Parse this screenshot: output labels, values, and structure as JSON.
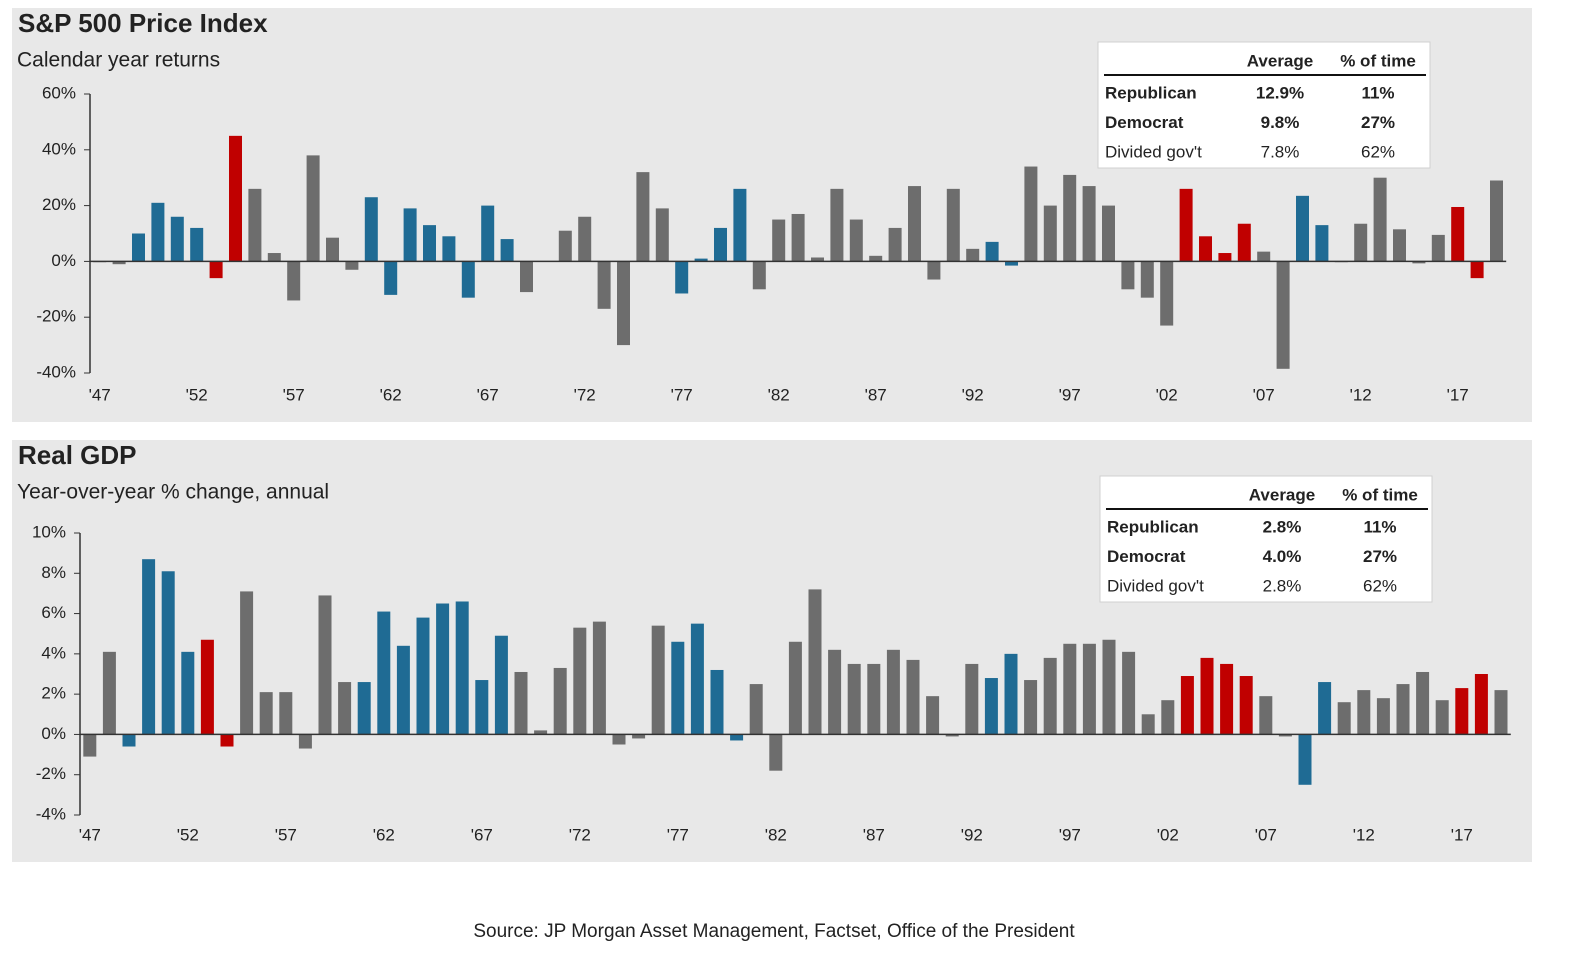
{
  "chart_data": [
    {
      "type": "bar",
      "title": "S&P 500 Price Index",
      "subtitle": "Calendar year returns",
      "categories": [
        "'47",
        null,
        null,
        null,
        null,
        "'52",
        null,
        null,
        null,
        null,
        "'57",
        null,
        null,
        null,
        null,
        "'62",
        null,
        null,
        null,
        null,
        "'67",
        null,
        null,
        null,
        null,
        "'72",
        null,
        null,
        null,
        null,
        "'77",
        null,
        null,
        null,
        null,
        "'82",
        null,
        null,
        null,
        null,
        "'87",
        null,
        null,
        null,
        null,
        "'92",
        null,
        null,
        null,
        null,
        "'97",
        null,
        null,
        null,
        null,
        "'02",
        null,
        null,
        null,
        null,
        "'07",
        null,
        null,
        null,
        null,
        "'12",
        null,
        null,
        null,
        null,
        "'17",
        null,
        null
      ],
      "series": [
        {
          "name": "Republican",
          "color": "#c00000",
          "values": [
            null,
            null,
            null,
            null,
            null,
            null,
            -6,
            45,
            null,
            null,
            null,
            null,
            null,
            null,
            null,
            null,
            null,
            null,
            null,
            null,
            null,
            null,
            null,
            null,
            null,
            null,
            null,
            null,
            null,
            null,
            null,
            null,
            null,
            null,
            null,
            null,
            null,
            null,
            null,
            null,
            null,
            null,
            null,
            null,
            null,
            null,
            null,
            null,
            null,
            null,
            null,
            null,
            null,
            null,
            null,
            null,
            26,
            9,
            3,
            13.5,
            null,
            null,
            null,
            null,
            null,
            null,
            null,
            null,
            null,
            null,
            19.5,
            -6,
            null
          ]
        },
        {
          "name": "Democrat",
          "color": "#1f6b94",
          "values": [
            null,
            null,
            10,
            21,
            16,
            12,
            null,
            null,
            null,
            null,
            null,
            null,
            null,
            null,
            23,
            -12,
            19,
            13,
            9,
            -13,
            20,
            8,
            null,
            null,
            null,
            null,
            null,
            null,
            null,
            null,
            -11.5,
            1,
            12,
            26,
            null,
            null,
            null,
            null,
            null,
            null,
            null,
            null,
            null,
            null,
            null,
            null,
            7,
            -1.5,
            null,
            null,
            null,
            null,
            null,
            null,
            null,
            null,
            null,
            null,
            null,
            null,
            null,
            null,
            23.5,
            13,
            null,
            null,
            null,
            null,
            null,
            null,
            null,
            null,
            null
          ]
        },
        {
          "name": "Divided gov't",
          "color": "#6d6d6d",
          "values": [
            0,
            -1,
            null,
            null,
            null,
            null,
            null,
            null,
            26,
            3,
            -14,
            38,
            8.5,
            -3,
            null,
            null,
            null,
            null,
            null,
            null,
            null,
            null,
            -11,
            0.1,
            11,
            16,
            -17,
            -30,
            32,
            19,
            null,
            null,
            null,
            null,
            -10,
            15,
            17,
            1.4,
            26,
            15,
            2,
            12,
            27,
            -6.5,
            26,
            4.5,
            null,
            null,
            34,
            20,
            31,
            27,
            20,
            -10,
            -13,
            -23,
            null,
            null,
            null,
            null,
            3.5,
            -38.5,
            null,
            null,
            0,
            13.5,
            30,
            11.5,
            -0.7,
            9.5,
            null,
            null,
            29
          ]
        }
      ],
      "ylim": [
        -40,
        60
      ],
      "yticks": [
        {
          "value": -40,
          "label": "-40%"
        },
        {
          "value": -20,
          "label": "-20%"
        },
        {
          "value": 0,
          "label": "0%"
        },
        {
          "value": 20,
          "label": "20%"
        },
        {
          "value": 40,
          "label": "40%"
        },
        {
          "value": 60,
          "label": "60%"
        }
      ],
      "summary": {
        "columns": [
          "Average",
          "% of time"
        ],
        "rows": [
          [
            "12.9%",
            "11%"
          ],
          [
            "9.8%",
            "27%"
          ],
          [
            "7.8%",
            "62%"
          ]
        ]
      }
    },
    {
      "type": "bar",
      "title": "Real GDP",
      "subtitle": "Year-over-year % change, annual",
      "categories": [
        "'47",
        null,
        null,
        null,
        null,
        "'52",
        null,
        null,
        null,
        null,
        "'57",
        null,
        null,
        null,
        null,
        "'62",
        null,
        null,
        null,
        null,
        "'67",
        null,
        null,
        null,
        null,
        "'72",
        null,
        null,
        null,
        null,
        "'77",
        null,
        null,
        null,
        null,
        "'82",
        null,
        null,
        null,
        null,
        "'87",
        null,
        null,
        null,
        null,
        "'92",
        null,
        null,
        null,
        null,
        "'97",
        null,
        null,
        null,
        null,
        "'02",
        null,
        null,
        null,
        null,
        "'07",
        null,
        null,
        null,
        null,
        "'12",
        null,
        null,
        null,
        null,
        "'17",
        null,
        null
      ],
      "series": [
        {
          "name": "Republican",
          "color": "#c00000",
          "values": [
            null,
            null,
            null,
            null,
            null,
            null,
            4.7,
            -0.6,
            null,
            null,
            null,
            null,
            null,
            null,
            null,
            null,
            null,
            null,
            null,
            null,
            null,
            null,
            null,
            null,
            null,
            null,
            null,
            null,
            null,
            null,
            null,
            null,
            null,
            null,
            null,
            null,
            null,
            null,
            null,
            null,
            null,
            null,
            null,
            null,
            null,
            null,
            null,
            null,
            null,
            null,
            null,
            null,
            null,
            null,
            null,
            null,
            2.9,
            3.8,
            3.5,
            2.9,
            null,
            null,
            null,
            null,
            null,
            null,
            null,
            null,
            null,
            null,
            2.3,
            3,
            null
          ]
        },
        {
          "name": "Democrat",
          "color": "#1f6b94",
          "values": [
            null,
            null,
            -0.6,
            8.7,
            8.1,
            4.1,
            null,
            null,
            null,
            null,
            null,
            null,
            null,
            null,
            2.6,
            6.1,
            4.4,
            5.8,
            6.5,
            6.6,
            2.7,
            4.9,
            null,
            null,
            null,
            null,
            null,
            null,
            null,
            null,
            4.6,
            5.5,
            3.2,
            -0.3,
            null,
            null,
            null,
            null,
            null,
            null,
            null,
            null,
            null,
            null,
            null,
            null,
            2.8,
            4,
            null,
            null,
            null,
            null,
            null,
            null,
            null,
            null,
            null,
            null,
            null,
            null,
            null,
            null,
            -2.5,
            2.6,
            null,
            null,
            null,
            null,
            null,
            null,
            null,
            null,
            null
          ]
        },
        {
          "name": "Divided gov't",
          "color": "#6d6d6d",
          "values": [
            -1.1,
            4.1,
            null,
            null,
            null,
            null,
            null,
            null,
            7.1,
            2.1,
            2.1,
            -0.7,
            6.9,
            2.6,
            null,
            null,
            null,
            null,
            null,
            null,
            null,
            null,
            3.1,
            0.2,
            3.3,
            5.3,
            5.6,
            -0.5,
            -0.2,
            5.4,
            null,
            null,
            null,
            null,
            2.5,
            -1.8,
            4.6,
            7.2,
            4.2,
            3.5,
            3.5,
            4.2,
            3.7,
            1.9,
            -0.1,
            3.5,
            null,
            null,
            2.7,
            3.8,
            4.5,
            4.5,
            4.7,
            4.1,
            1,
            1.7,
            null,
            null,
            null,
            null,
            1.9,
            -0.1,
            null,
            null,
            1.6,
            2.2,
            1.8,
            2.5,
            3.1,
            1.7,
            null,
            null,
            2.2
          ]
        }
      ],
      "ylim": [
        -4,
        10
      ],
      "yticks": [
        {
          "value": -4,
          "label": "-4%"
        },
        {
          "value": -2,
          "label": "-2%"
        },
        {
          "value": 0,
          "label": "0%"
        },
        {
          "value": 2,
          "label": "2%"
        },
        {
          "value": 4,
          "label": "4%"
        },
        {
          "value": 6,
          "label": "6%"
        },
        {
          "value": 8,
          "label": "8%"
        },
        {
          "value": 10,
          "label": "10%"
        }
      ],
      "summary": {
        "columns": [
          "Average",
          "% of time"
        ],
        "rows": [
          [
            "2.8%",
            "11%"
          ],
          [
            "4.0%",
            "27%"
          ],
          [
            "2.8%",
            "62%"
          ]
        ]
      }
    }
  ],
  "source": "Source: JP Morgan Asset Management, Factset, Office of the President"
}
